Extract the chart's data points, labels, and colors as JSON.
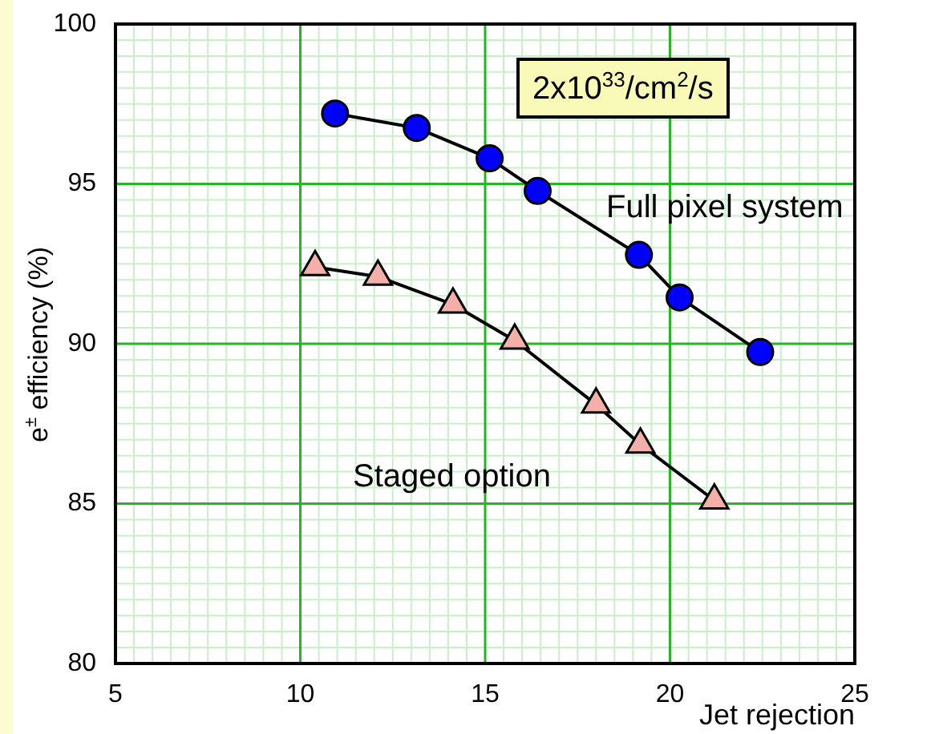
{
  "chart_data": {
    "type": "line",
    "xlabel": "Jet rejection",
    "ylabel": "e$^{±}$ efficiency (%)",
    "annotations": [
      "2x10$^{33}$/cm$^{2}$/s"
    ],
    "series": [
      {
        "name": "Full pixel system",
        "color": "#0000ff",
        "marker": "circle",
        "x": [
          10.94,
          13.15,
          15.12,
          16.42,
          19.16,
          20.26,
          22.44
        ],
        "values": [
          97.2,
          96.75,
          95.8,
          94.78,
          92.78,
          91.45,
          89.74
        ]
      },
      {
        "name": "Staged option",
        "color": "#f4b0a8",
        "marker": "triangle",
        "x": [
          10.4,
          12.1,
          14.13,
          15.8,
          18.0,
          19.2,
          21.2
        ],
        "values": [
          92.4,
          92.1,
          91.23,
          90.1,
          88.1,
          86.85,
          85.1
        ]
      }
    ],
    "xlim": [
      5,
      25
    ],
    "xticks": [
      5,
      10,
      15,
      20,
      25
    ],
    "ylim": [
      80,
      100
    ],
    "yticks": [
      80,
      85,
      90,
      95,
      100
    ],
    "grid": true,
    "legend": false
  }
}
